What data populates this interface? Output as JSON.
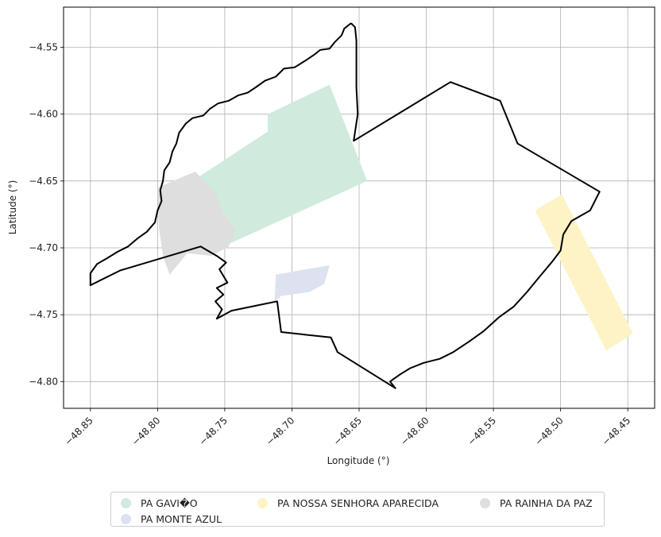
{
  "chart_data": {
    "type": "map",
    "xlabel": "Longitude (°)",
    "ylabel": "Latitude (°)",
    "xlim": [
      -48.87,
      -48.43
    ],
    "ylim": [
      -4.82,
      -4.52
    ],
    "grid": true,
    "xticks": [
      {
        "value": -48.85,
        "label": "−48.85"
      },
      {
        "value": -48.8,
        "label": "−48.80"
      },
      {
        "value": -48.75,
        "label": "−48.75"
      },
      {
        "value": -48.7,
        "label": "−48.70"
      },
      {
        "value": -48.65,
        "label": "−48.65"
      },
      {
        "value": -48.6,
        "label": "−48.60"
      },
      {
        "value": -48.55,
        "label": "−48.55"
      },
      {
        "value": -48.5,
        "label": "−48.50"
      },
      {
        "value": -48.45,
        "label": "−48.45"
      }
    ],
    "yticks": [
      {
        "value": -4.55,
        "label": "−4.55"
      },
      {
        "value": -4.6,
        "label": "−4.60"
      },
      {
        "value": -4.65,
        "label": "−4.65"
      },
      {
        "value": -4.7,
        "label": "−4.70"
      },
      {
        "value": -4.75,
        "label": "−4.75"
      },
      {
        "value": -4.8,
        "label": "−4.80"
      }
    ],
    "boundary": {
      "color": "#000000",
      "coords": [
        [
          -48.656,
          -4.532
        ],
        [
          -48.653,
          -4.535
        ],
        [
          -48.652,
          -4.545
        ],
        [
          -48.652,
          -4.56
        ],
        [
          -48.652,
          -4.58
        ],
        [
          -48.651,
          -4.6
        ],
        [
          -48.654,
          -4.62
        ],
        [
          -48.582,
          -4.576
        ],
        [
          -48.545,
          -4.59
        ],
        [
          -48.532,
          -4.622
        ],
        [
          -48.471,
          -4.658
        ],
        [
          -48.478,
          -4.672
        ],
        [
          -48.492,
          -4.68
        ],
        [
          -48.498,
          -4.69
        ],
        [
          -48.5,
          -4.702
        ],
        [
          -48.506,
          -4.71
        ],
        [
          -48.516,
          -4.722
        ],
        [
          -48.525,
          -4.733
        ],
        [
          -48.535,
          -4.744
        ],
        [
          -48.546,
          -4.752
        ],
        [
          -48.557,
          -4.762
        ],
        [
          -48.568,
          -4.77
        ],
        [
          -48.58,
          -4.778
        ],
        [
          -48.59,
          -4.783
        ],
        [
          -48.602,
          -4.786
        ],
        [
          -48.612,
          -4.79
        ],
        [
          -48.62,
          -4.795
        ],
        [
          -48.627,
          -4.8
        ],
        [
          -48.623,
          -4.805
        ],
        [
          -48.666,
          -4.778
        ],
        [
          -48.671,
          -4.767
        ],
        [
          -48.708,
          -4.763
        ],
        [
          -48.711,
          -4.74
        ],
        [
          -48.745,
          -4.747
        ],
        [
          -48.756,
          -4.753
        ],
        [
          -48.752,
          -4.746
        ],
        [
          -48.757,
          -4.74
        ],
        [
          -48.751,
          -4.735
        ],
        [
          -48.756,
          -4.73
        ],
        [
          -48.748,
          -4.726
        ],
        [
          -48.754,
          -4.716
        ],
        [
          -48.749,
          -4.711
        ],
        [
          -48.756,
          -4.706
        ],
        [
          -48.768,
          -4.699
        ],
        [
          -48.828,
          -4.717
        ],
        [
          -48.85,
          -4.728
        ],
        [
          -48.85,
          -4.719
        ],
        [
          -48.845,
          -4.712
        ],
        [
          -48.838,
          -4.708
        ],
        [
          -48.83,
          -4.703
        ],
        [
          -48.822,
          -4.699
        ],
        [
          -48.815,
          -4.693
        ],
        [
          -48.808,
          -4.688
        ],
        [
          -48.802,
          -4.681
        ],
        [
          -48.8,
          -4.672
        ],
        [
          -48.797,
          -4.665
        ],
        [
          -48.798,
          -4.657
        ],
        [
          -48.796,
          -4.65
        ],
        [
          -48.795,
          -4.642
        ],
        [
          -48.791,
          -4.636
        ],
        [
          -48.789,
          -4.628
        ],
        [
          -48.786,
          -4.622
        ],
        [
          -48.784,
          -4.614
        ],
        [
          -48.779,
          -4.607
        ],
        [
          -48.774,
          -4.603
        ],
        [
          -48.766,
          -4.601
        ],
        [
          -48.761,
          -4.596
        ],
        [
          -48.755,
          -4.592
        ],
        [
          -48.747,
          -4.59
        ],
        [
          -48.74,
          -4.586
        ],
        [
          -48.733,
          -4.584
        ],
        [
          -48.727,
          -4.58
        ],
        [
          -48.72,
          -4.575
        ],
        [
          -48.712,
          -4.572
        ],
        [
          -48.706,
          -4.566
        ],
        [
          -48.698,
          -4.565
        ],
        [
          -48.69,
          -4.56
        ],
        [
          -48.684,
          -4.556
        ],
        [
          -48.679,
          -4.552
        ],
        [
          -48.672,
          -4.551
        ],
        [
          -48.668,
          -4.546
        ],
        [
          -48.663,
          -4.541
        ],
        [
          -48.661,
          -4.536
        ],
        [
          -48.656,
          -4.532
        ]
      ]
    },
    "series": [
      {
        "name": "PA GAVI�O",
        "color": "#d0ebdd",
        "coords": [
          [
            -48.672,
            -4.578
          ],
          [
            -48.644,
            -4.65
          ],
          [
            -48.751,
            -4.699
          ],
          [
            -48.771,
            -4.648
          ],
          [
            -48.718,
            -4.613
          ],
          [
            -48.718,
            -4.6
          ]
        ]
      },
      {
        "name": "PA MONTE AZUL",
        "color": "#dde2f0",
        "coords": [
          [
            -48.712,
            -4.72
          ],
          [
            -48.672,
            -4.713
          ],
          [
            -48.676,
            -4.727
          ],
          [
            -48.687,
            -4.733
          ],
          [
            -48.708,
            -4.736
          ],
          [
            -48.713,
            -4.74
          ]
        ]
      },
      {
        "name": "PA NOSSA SENHORA APARECIDA",
        "color": "#fef3c6",
        "coords": [
          [
            -48.519,
            -4.672
          ],
          [
            -48.499,
            -4.66
          ],
          [
            -48.446,
            -4.764
          ],
          [
            -48.466,
            -4.777
          ]
        ]
      },
      {
        "name": "PA RAINHA DA PAZ",
        "color": "#dedede",
        "coords": [
          [
            -48.8,
            -4.655
          ],
          [
            -48.772,
            -4.643
          ],
          [
            -48.757,
            -4.658
          ],
          [
            -48.751,
            -4.675
          ],
          [
            -48.742,
            -4.686
          ],
          [
            -48.747,
            -4.699
          ],
          [
            -48.76,
            -4.706
          ],
          [
            -48.778,
            -4.704
          ],
          [
            -48.791,
            -4.72
          ],
          [
            -48.796,
            -4.706
          ],
          [
            -48.799,
            -4.685
          ]
        ]
      }
    ],
    "legend": {
      "position": "bottom-center",
      "entries": [
        "PA GAVI�O",
        "PA NOSSA SENHORA APARECIDA",
        "PA RAINHA DA PAZ",
        "PA MONTE AZUL"
      ]
    }
  },
  "colors": {
    "gavio": "#d0ebdd",
    "monte_azul": "#dde2f0",
    "nossa_senhora": "#fef3c6",
    "rainha": "#dedede"
  }
}
